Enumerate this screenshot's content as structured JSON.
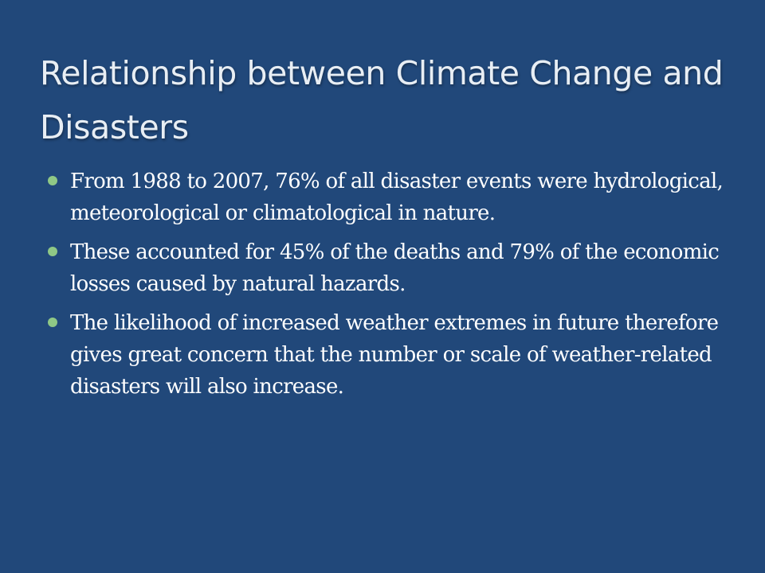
{
  "slide": {
    "title": "Relationship between Climate Change and Disasters",
    "bullets": [
      "From 1988 to 2007, 76% of all disaster events were hydrological, meteorological or climatological in nature.",
      "These accounted for 45% of the deaths and 79% of the economic losses caused by natural hazards.",
      "The likelihood of increased weather extremes in future therefore gives great concern that the number or scale of weather-related disasters will also increase."
    ]
  },
  "colors": {
    "background": "#21487a",
    "title_text": "#e8eef4",
    "body_text": "#ffffff",
    "bullet_marker": "#8fc886"
  }
}
